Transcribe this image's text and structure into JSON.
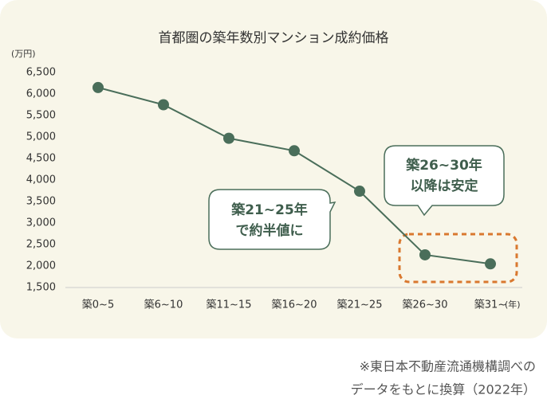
{
  "chart_data": {
    "type": "line",
    "title": "首都圏の築年数別マンション成約価格",
    "y_unit": "(万円)",
    "x_unit": "(年)",
    "categories": [
      "築0~5",
      "築6~10",
      "築11~15",
      "築16~20",
      "築21~25",
      "築26~30",
      "築31~"
    ],
    "series": [
      {
        "name": "成約価格",
        "color": "#4a6e5a",
        "values": [
          6150,
          5750,
          4970,
          4680,
          3740,
          2260,
          2050
        ]
      }
    ],
    "ylim": [
      1500,
      6500
    ],
    "yticks": [
      {
        "value": 1500,
        "label": "1,500"
      },
      {
        "value": 2000,
        "label": "2,000"
      },
      {
        "value": 2500,
        "label": "2,500"
      },
      {
        "value": 3000,
        "label": "3,000"
      },
      {
        "value": 3500,
        "label": "3,500"
      },
      {
        "value": 4000,
        "label": "4,000"
      },
      {
        "value": 4500,
        "label": "4,500"
      },
      {
        "value": 5000,
        "label": "5,000"
      },
      {
        "value": 5500,
        "label": "5,500"
      },
      {
        "value": 6000,
        "label": "6,000"
      },
      {
        "value": 6500,
        "label": "6,500"
      }
    ],
    "annotations": [
      [
        "築21~25年",
        "で約半値に"
      ],
      [
        "築26~30年",
        "以降は安定"
      ]
    ],
    "note": [
      "※東日本不動産流通機構調べの",
      "データをもとに換算（2022年）"
    ]
  }
}
